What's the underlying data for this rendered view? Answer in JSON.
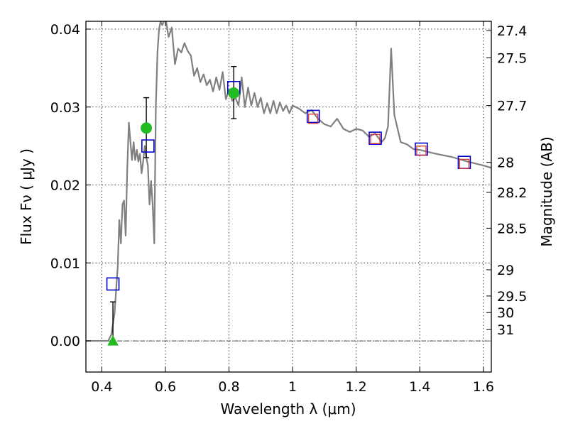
{
  "chart_data": {
    "type": "scatter",
    "xlabel": "Wavelength  λ (μm)",
    "ylabel": "Flux  Fν  ( μJy )",
    "ylabel_right": "Magnitude (AB)",
    "xlim": [
      0.35,
      1.625
    ],
    "ylim": [
      -0.004,
      0.041
    ],
    "grid": true,
    "x_ticks": [
      {
        "value": 0.4,
        "label": "0.4"
      },
      {
        "value": 0.6,
        "label": "0.6"
      },
      {
        "value": 0.8,
        "label": "0.8"
      },
      {
        "value": 1.0,
        "label": "1"
      },
      {
        "value": 1.2,
        "label": "1.2"
      },
      {
        "value": 1.4,
        "label": "1.4"
      },
      {
        "value": 1.6,
        "label": "1.6"
      }
    ],
    "y_ticks": [
      {
        "value": 0.0,
        "label": "0.00"
      },
      {
        "value": 0.01,
        "label": "0.01"
      },
      {
        "value": 0.02,
        "label": "0.02"
      },
      {
        "value": 0.03,
        "label": "0.03"
      },
      {
        "value": 0.04,
        "label": "0.04"
      }
    ],
    "right_ticks": [
      {
        "value": 27.4,
        "label": "27.4"
      },
      {
        "value": 27.5,
        "label": "27.5"
      },
      {
        "value": 27.7,
        "label": "27.7"
      },
      {
        "value": 28,
        "label": "28"
      },
      {
        "value": 28.2,
        "label": "28.2"
      },
      {
        "value": 28.5,
        "label": "28.5"
      },
      {
        "value": 29,
        "label": "29"
      },
      {
        "value": 29.5,
        "label": "29.5"
      },
      {
        "value": 30,
        "label": "30"
      },
      {
        "value": 31,
        "label": "31"
      }
    ],
    "model_spectrum": {
      "color": "#808080",
      "x": [
        0.35,
        0.42,
        0.43,
        0.44,
        0.45,
        0.455,
        0.46,
        0.465,
        0.47,
        0.475,
        0.48,
        0.485,
        0.49,
        0.495,
        0.5,
        0.505,
        0.51,
        0.515,
        0.52,
        0.525,
        0.53,
        0.535,
        0.54,
        0.545,
        0.55,
        0.555,
        0.56,
        0.565,
        0.57,
        0.575,
        0.58,
        0.585,
        0.59,
        0.6,
        0.61,
        0.62,
        0.63,
        0.64,
        0.65,
        0.66,
        0.67,
        0.68,
        0.69,
        0.7,
        0.71,
        0.72,
        0.73,
        0.74,
        0.75,
        0.76,
        0.77,
        0.78,
        0.79,
        0.8,
        0.81,
        0.82,
        0.83,
        0.84,
        0.85,
        0.86,
        0.87,
        0.88,
        0.89,
        0.9,
        0.91,
        0.92,
        0.93,
        0.94,
        0.95,
        0.96,
        0.97,
        0.98,
        0.99,
        1.0,
        1.02,
        1.04,
        1.06,
        1.08,
        1.1,
        1.12,
        1.14,
        1.16,
        1.18,
        1.2,
        1.22,
        1.24,
        1.26,
        1.28,
        1.29,
        1.3,
        1.31,
        1.32,
        1.34,
        1.36,
        1.38,
        1.4,
        1.45,
        1.5,
        1.55,
        1.6,
        1.625
      ],
      "y": [
        0.0,
        0.0,
        0.0008,
        0.0035,
        0.0095,
        0.0155,
        0.0125,
        0.0175,
        0.018,
        0.0135,
        0.022,
        0.028,
        0.0255,
        0.0232,
        0.0255,
        0.0232,
        0.0245,
        0.023,
        0.024,
        0.0215,
        0.023,
        0.025,
        0.0235,
        0.0225,
        0.0175,
        0.0205,
        0.0175,
        0.0125,
        0.03,
        0.037,
        0.04,
        0.041,
        0.0405,
        0.0415,
        0.039,
        0.0402,
        0.0355,
        0.0375,
        0.037,
        0.0382,
        0.0372,
        0.0366,
        0.034,
        0.035,
        0.0332,
        0.0342,
        0.0328,
        0.0335,
        0.032,
        0.0338,
        0.0322,
        0.0345,
        0.031,
        0.0322,
        0.0308,
        0.0312,
        0.0302,
        0.0338,
        0.03,
        0.0325,
        0.0302,
        0.0318,
        0.03,
        0.0312,
        0.0292,
        0.0305,
        0.0292,
        0.0308,
        0.0292,
        0.0306,
        0.0295,
        0.0302,
        0.0292,
        0.0302,
        0.0298,
        0.0292,
        0.0296,
        0.0285,
        0.0278,
        0.0275,
        0.0285,
        0.0272,
        0.0268,
        0.0272,
        0.027,
        0.0262,
        0.0266,
        0.0255,
        0.026,
        0.0275,
        0.0375,
        0.029,
        0.0255,
        0.0252,
        0.0246,
        0.0245,
        0.024,
        0.0236,
        0.023,
        0.0225,
        0.0222
      ]
    },
    "series": [
      {
        "marker": "square-open",
        "color": "#0000cc",
        "x": [
          0.435,
          0.545,
          0.815,
          1.065,
          1.26,
          1.405,
          1.54
        ],
        "y": [
          0.0073,
          0.025,
          0.0325,
          0.0288,
          0.026,
          0.0246,
          0.0229
        ]
      },
      {
        "marker": "square-open",
        "color": "#dd3333",
        "x": [
          1.065,
          1.26,
          1.405,
          1.54
        ],
        "y": [
          0.0285,
          0.0259,
          0.0244,
          0.0227
        ]
      },
      {
        "marker": "circle",
        "color": "#22bb22",
        "x": [
          0.54,
          0.815
        ],
        "y": [
          0.0273,
          0.0318
        ]
      },
      {
        "marker": "triangle",
        "color": "#22bb22",
        "x": [
          0.435
        ],
        "y": [
          0.0
        ]
      }
    ],
    "error_bars": [
      {
        "x": 0.435,
        "ylow": 0.0,
        "yhigh": 0.005
      },
      {
        "x": 0.54,
        "ylow": 0.0235,
        "yhigh": 0.0312
      },
      {
        "x": 0.815,
        "ylow": 0.0285,
        "yhigh": 0.0352
      }
    ]
  }
}
